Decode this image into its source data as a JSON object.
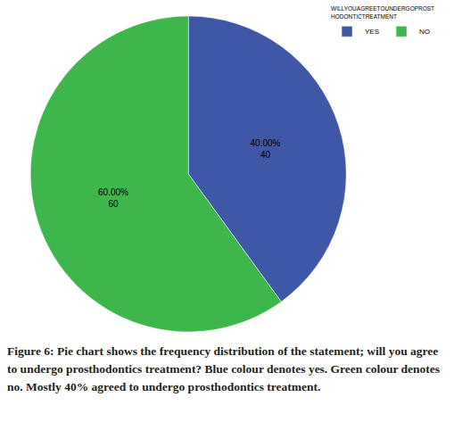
{
  "chart_data": {
    "type": "pie",
    "legend_title": "WILLYOUAGREETOUNDERGOPROST\nHODONTICTREATMENT",
    "categories": [
      "YES",
      "NO"
    ],
    "values": [
      40,
      60
    ],
    "value_labels": [
      "40.00%\n40",
      "60.00%\n60"
    ],
    "colors": [
      "#3f57a7",
      "#3db64b"
    ],
    "data_labels": true,
    "legend": "top right",
    "caption": "Figure 6: Pie chart shows the frequency distribution of the statement; will you agree to undergo prosthodontics treatment? Blue colour denotes yes. Green colour denotes no. Mostly 40% agreed to undergo prosthodontics treatment."
  }
}
